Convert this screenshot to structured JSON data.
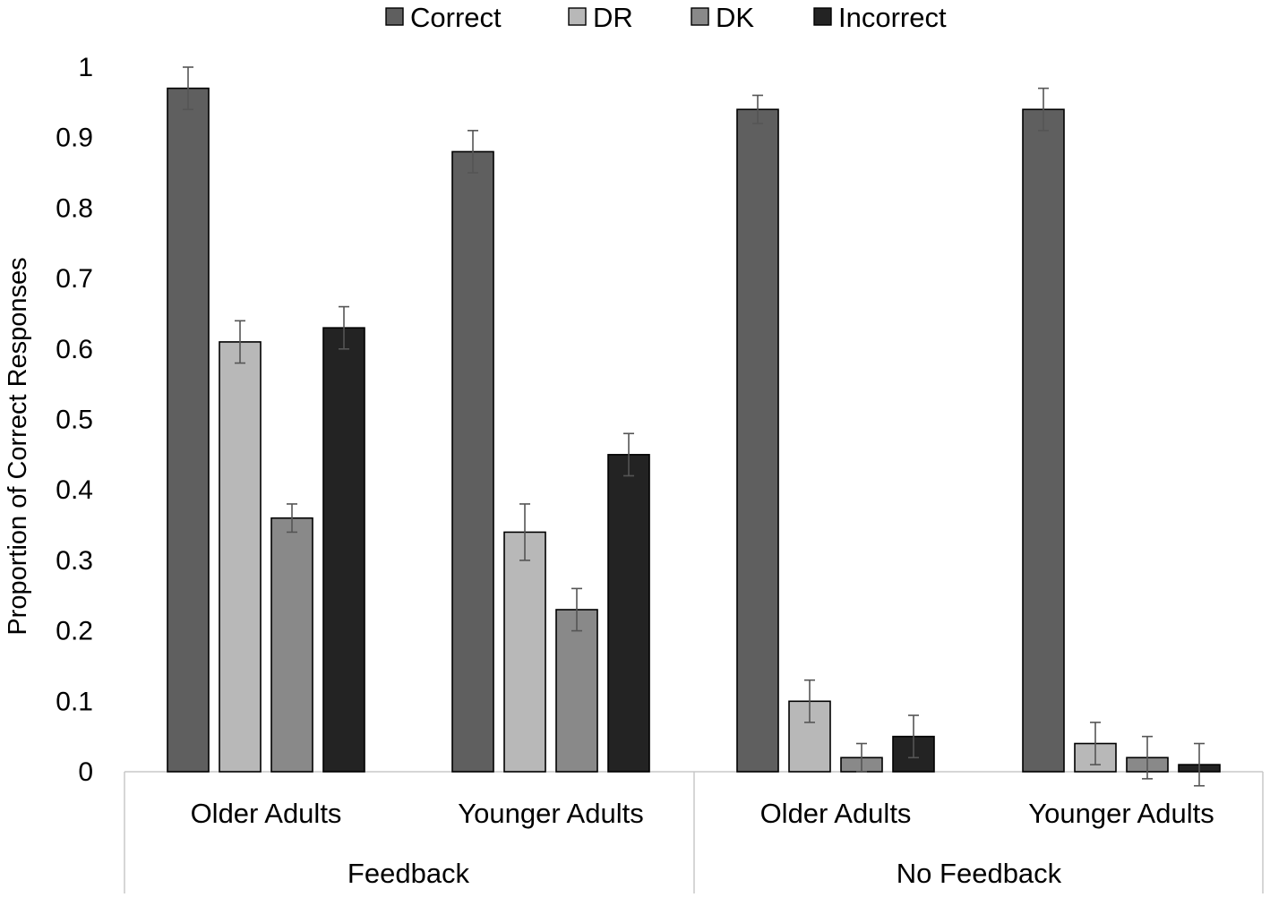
{
  "chart_data": {
    "type": "bar",
    "title": "",
    "ylabel": "Proportion of Correct Responses",
    "xlabel": "",
    "ylim": [
      0,
      1
    ],
    "yticks": [
      "0",
      "0.1",
      "0.2",
      "0.3",
      "0.4",
      "0.5",
      "0.6",
      "0.7",
      "0.8",
      "0.9",
      "1"
    ],
    "grid": false,
    "legend_position": "top-center",
    "groups": [
      "Feedback",
      "No Feedback"
    ],
    "categories": [
      {
        "group": "Feedback",
        "label": "Older Adults"
      },
      {
        "group": "Feedback",
        "label": "Younger Adults"
      },
      {
        "group": "No Feedback",
        "label": "Older Adults"
      },
      {
        "group": "No Feedback",
        "label": "Younger Adults"
      }
    ],
    "series": [
      {
        "name": "Correct",
        "color": "#5f5f5f",
        "values": [
          0.97,
          0.88,
          0.94,
          0.94
        ],
        "errors": [
          0.03,
          0.03,
          0.02,
          0.03
        ]
      },
      {
        "name": "DR",
        "color": "#b8b8b8",
        "values": [
          0.61,
          0.34,
          0.1,
          0.04
        ],
        "errors": [
          0.03,
          0.04,
          0.03,
          0.03
        ]
      },
      {
        "name": "DK",
        "color": "#898989",
        "values": [
          0.36,
          0.23,
          0.02,
          0.02
        ],
        "errors": [
          0.02,
          0.03,
          0.02,
          0.03
        ]
      },
      {
        "name": "Incorrect",
        "color": "#232323",
        "values": [
          0.63,
          0.45,
          0.05,
          0.01
        ],
        "errors": [
          0.03,
          0.03,
          0.03,
          0.03
        ]
      }
    ]
  }
}
